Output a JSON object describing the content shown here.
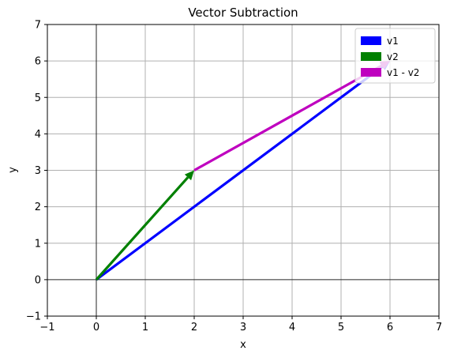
{
  "chart_data": {
    "type": "vector",
    "title": "Vector Subtraction",
    "xlabel": "x",
    "ylabel": "y",
    "xlim": [
      -1,
      7
    ],
    "ylim": [
      -1,
      7
    ],
    "xticks": [
      "-1",
      "0",
      "1",
      "2",
      "3",
      "4",
      "5",
      "6",
      "7"
    ],
    "yticks": [
      "-1",
      "0",
      "1",
      "2",
      "3",
      "4",
      "5",
      "6",
      "7"
    ],
    "grid": true,
    "legend_position": "top-right",
    "series": [
      {
        "name": "v1",
        "color": "#0000ff",
        "from": [
          0,
          0
        ],
        "to": [
          6,
          6
        ]
      },
      {
        "name": "v2",
        "color": "#008000",
        "from": [
          0,
          0
        ],
        "to": [
          2,
          3
        ]
      },
      {
        "name": "v1 - v2",
        "color": "#bf00bf",
        "from": [
          2,
          3
        ],
        "to": [
          6,
          6
        ]
      }
    ]
  }
}
